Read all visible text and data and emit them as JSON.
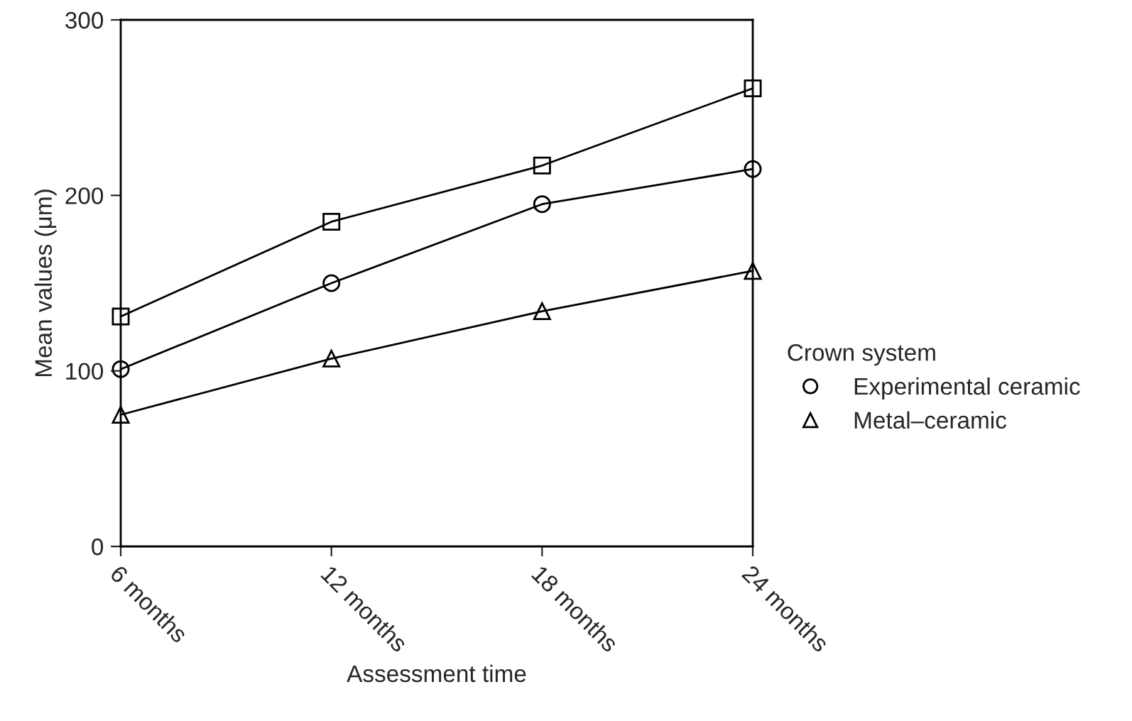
{
  "chart_data": {
    "type": "line",
    "xlabel": "Assessment time",
    "ylabel": "Mean values (μm)",
    "legend_title": "Crown system",
    "categories": [
      "6 months",
      "12 months",
      "18 months",
      "24 months"
    ],
    "series": [
      {
        "color": "#000000",
        "marker": "square",
        "values": [
          131,
          185,
          217,
          261
        ]
      },
      {
        "name": "Experimental ceramic",
        "color": "#000000",
        "marker": "circle",
        "values": [
          101,
          150,
          195,
          215
        ]
      },
      {
        "name": "Metal–ceramic",
        "color": "#000000",
        "marker": "triangle",
        "values": [
          75,
          107,
          134,
          157
        ]
      }
    ],
    "ylim": [
      0,
      300
    ],
    "yticks": [
      0,
      100,
      200,
      300
    ],
    "grid": false,
    "legend": "right",
    "line_style": "solid"
  }
}
